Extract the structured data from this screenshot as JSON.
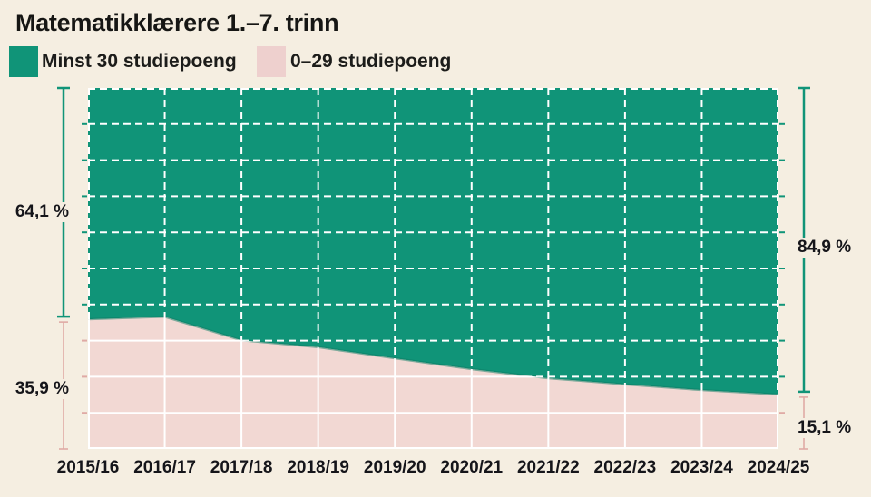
{
  "title": "Matematikklærere 1.–7. trinn",
  "legend": [
    {
      "label": "Minst 30 studiepoeng",
      "color": "#109478"
    },
    {
      "label": "0–29 studiepoeng",
      "color": "#eed0ce"
    }
  ],
  "annotations": {
    "start_green": "64,1 %",
    "start_pink": "35,9 %",
    "end_green": "84,9 %",
    "end_pink": "15,1 %"
  },
  "chart_data": {
    "type": "area",
    "stacked": true,
    "title": "Matematikklærere 1.–7. trinn",
    "unit": "%",
    "ylim": [
      0,
      100
    ],
    "x": [
      "2015/16",
      "2016/17",
      "2017/18",
      "2018/19",
      "2019/20",
      "2020/21",
      "2021/22",
      "2022/23",
      "2023/24",
      "2024/25"
    ],
    "series": [
      {
        "name": "Minst 30 studiepoeng",
        "color": "#109478",
        "values": [
          64.1,
          63.4,
          69.9,
          71.8,
          74.9,
          77.9,
          80.4,
          82.1,
          83.7,
          84.9
        ]
      },
      {
        "name": "0–29 studiepoeng",
        "color": "#f2d8d3",
        "values": [
          35.9,
          36.6,
          30.1,
          28.2,
          25.1,
          22.1,
          19.6,
          17.9,
          16.3,
          15.1
        ]
      }
    ],
    "labeled_points": {
      "2015/16": {
        "Minst 30 studiepoeng": 64.1,
        "0–29 studiepoeng": 35.9
      },
      "2024/25": {
        "Minst 30 studiepoeng": 84.9,
        "0–29 studiepoeng": 15.1
      }
    },
    "grid": {
      "color": "#ffffff",
      "y_step": 10,
      "style_over_series_0": "dashed",
      "style_over_series_1": "solid"
    },
    "bracket_colors": {
      "green": "#109478",
      "pink": "#dfaaa5"
    },
    "legend_position": "top-left"
  }
}
